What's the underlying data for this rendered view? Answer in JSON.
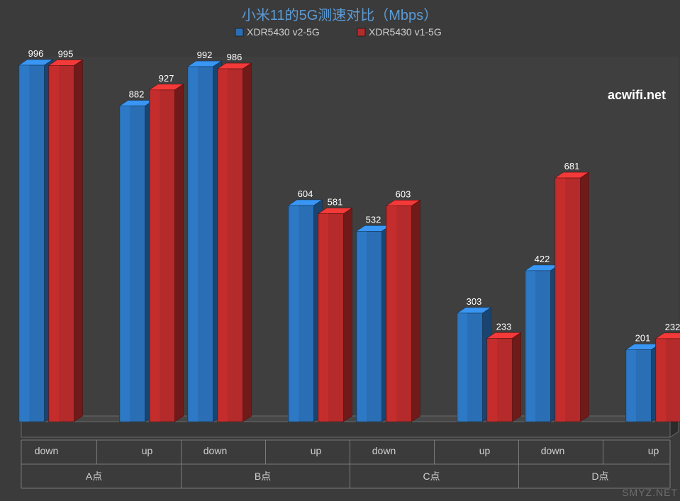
{
  "chart": {
    "type": "grouped_bar_3d",
    "title": "小米11的5G测速对比（Mbps）",
    "title_color": "#5b9bd5",
    "title_fontsize": 20,
    "background_color": "#3b3b3b",
    "watermark": "acwifi.net",
    "watermark_color": "#ffffff",
    "watermark_fontsize": 18,
    "corner_mark": "SMYZ.NET",
    "corner_mark_color": "#6e6e6e",
    "corner_mark_fontsize": 14,
    "legend": {
      "items": [
        {
          "label": "XDR5430 v2-5G",
          "color": "#2a6fb5",
          "color_light": "#4f8fd0"
        },
        {
          "label": "XDR5430 v1-5G",
          "color": "#b52a2a",
          "color_light": "#d04f4f"
        }
      ],
      "text_color": "#d0d0d0",
      "fontsize": 14
    },
    "axis": {
      "floor_color": "#474747",
      "floor_edge": "#6a6a6a",
      "wall_color": "#3f3f3f",
      "grid_color": "#555555",
      "category_line_color": "#7a7a7a",
      "label_color": "#d0d0d0",
      "sub_label": {
        "down": "down",
        "up": "up"
      },
      "sub_label_fontsize": 14,
      "group_label_fontsize": 14,
      "data_label_color": "#ffffff",
      "data_label_fontsize": 13
    },
    "ylim": [
      0,
      1000
    ],
    "groups": [
      {
        "label": "A点",
        "pairs": [
          {
            "sub": "down",
            "v2": 996,
            "v1": 995
          },
          {
            "sub": "up",
            "v2": 882,
            "v1": 927
          }
        ]
      },
      {
        "label": "B点",
        "pairs": [
          {
            "sub": "down",
            "v2": 992,
            "v1": 986
          },
          {
            "sub": "up",
            "v2": 604,
            "v1": 581
          }
        ]
      },
      {
        "label": "C点",
        "pairs": [
          {
            "sub": "down",
            "v2": 532,
            "v1": 603
          },
          {
            "sub": "up",
            "v2": 303,
            "v1": 233
          }
        ]
      },
      {
        "label": "D点",
        "pairs": [
          {
            "sub": "down",
            "v2": 422,
            "v1": 681
          },
          {
            "sub": "up",
            "v2": 201,
            "v1": 232
          }
        ]
      }
    ],
    "bar": {
      "width": 36,
      "gap_in_pair": 6,
      "gap_between_pairs": 64,
      "gap_between_groups": 18,
      "depth_x": 12,
      "depth_y": 8
    }
  }
}
